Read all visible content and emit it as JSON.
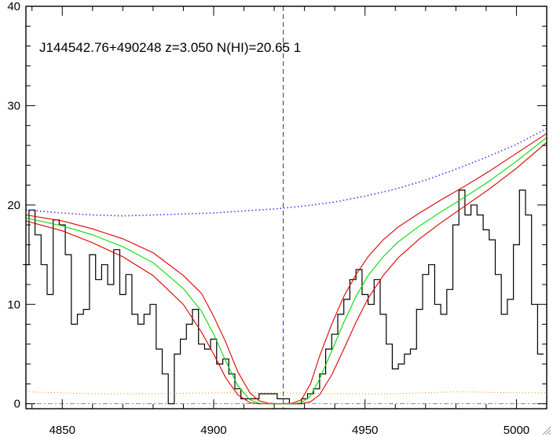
{
  "chart_data": {
    "type": "line",
    "title": "J144542.76+490248 z=3.050 N(HI)=20.65 1",
    "xlabel": "",
    "ylabel": "",
    "xlim": [
      4838,
      5010
    ],
    "ylim": [
      -0.5,
      40
    ],
    "xticks": [
      4850,
      4900,
      4950,
      5000
    ],
    "yticks": [
      0,
      10,
      20,
      30,
      40
    ],
    "absorber_center": 4923,
    "colors": {
      "flux": "#000000",
      "model": "#00dd00",
      "bounds": "#dd0000",
      "continuum": "#5a2aff",
      "marker": "#2222cc",
      "error": "#ff8800",
      "zero": "#888888"
    },
    "series": [
      {
        "style": "step",
        "x": [
          4838,
          4840,
          4842,
          4844,
          4846,
          4848,
          4850,
          4852,
          4854,
          4856,
          4858,
          4860,
          4862,
          4864,
          4866,
          4868,
          4870,
          4872,
          4874,
          4876,
          4878,
          4880,
          4882,
          4884,
          4886,
          4888,
          4890,
          4892,
          4894,
          4896,
          4898,
          4900,
          4902,
          4904,
          4906,
          4908,
          4910,
          4912,
          4914,
          4916,
          4918,
          4920,
          4922,
          4924,
          4926,
          4928,
          4930,
          4932,
          4934,
          4936,
          4938,
          4940,
          4942,
          4944,
          4946,
          4948,
          4950,
          4952,
          4954,
          4956,
          4958,
          4960,
          4962,
          4964,
          4966,
          4968,
          4970,
          4972,
          4974,
          4976,
          4978,
          4980,
          4982,
          4984,
          4986,
          4988,
          4990,
          4992,
          4994,
          4996,
          4998,
          5000,
          5002,
          5004,
          5006,
          5008
        ],
        "y": [
          14,
          19.5,
          17,
          14,
          11,
          18.5,
          18,
          15,
          8,
          9,
          9.5,
          15,
          12.5,
          14,
          12,
          15.5,
          11,
          13,
          9,
          8,
          9,
          10,
          5.5,
          3,
          0,
          5,
          6.5,
          8,
          9.5,
          6,
          5.5,
          6.5,
          4,
          4.5,
          3,
          1.5,
          0.5,
          0.5,
          0.5,
          1,
          1,
          1,
          0.5,
          0.5,
          0,
          0,
          0.5,
          1,
          1.5,
          3,
          5.5,
          7,
          9,
          10.5,
          12.5,
          13.5,
          11,
          10,
          12.5,
          9,
          6,
          3.5,
          4,
          5,
          5.5,
          9.5,
          13,
          14,
          10,
          9,
          11.5,
          18,
          21.5,
          19,
          20,
          19,
          17.5,
          16.5,
          13,
          9,
          10.5,
          16,
          21.5,
          19,
          10,
          5
        ]
      },
      {
        "name": "model",
        "x": [
          4838,
          4850,
          4860,
          4870,
          4880,
          4890,
          4896,
          4900,
          4904,
          4908,
          4912,
          4915,
          4918,
          4922,
          4926,
          4929,
          4932,
          4935,
          4939,
          4943,
          4947,
          4951,
          4956,
          4961,
          4968,
          4975,
          4983,
          4991,
          5000,
          5010
        ],
        "y": [
          18.7,
          17.9,
          17,
          15.8,
          14.2,
          11.6,
          9.3,
          7,
          4.3,
          1.8,
          0.4,
          0.05,
          0,
          0,
          0,
          0.1,
          0.8,
          2.5,
          5.3,
          8.2,
          10.8,
          12.9,
          14.8,
          16.3,
          17.9,
          19.3,
          20.8,
          22.4,
          24.4,
          26.8
        ]
      },
      {
        "name": "upper",
        "x": [
          4838,
          4850,
          4860,
          4870,
          4880,
          4890,
          4896,
          4900,
          4904,
          4908,
          4912,
          4915,
          4918,
          4922,
          4926,
          4929,
          4932,
          4935,
          4939,
          4943,
          4947,
          4951,
          4956,
          4961,
          4968,
          4975,
          4983,
          4991,
          5000,
          5010
        ],
        "y": [
          19,
          18.4,
          17.6,
          16.6,
          15.2,
          12.9,
          11.1,
          8.8,
          6.2,
          3.2,
          1.1,
          0.3,
          0.05,
          0,
          0.05,
          0.4,
          2,
          4.8,
          8,
          10.8,
          13,
          14.8,
          16.5,
          17.8,
          19.2,
          20.5,
          21.9,
          23.4,
          25.2,
          27.2
        ]
      },
      {
        "name": "lower",
        "x": [
          4838,
          4850,
          4860,
          4870,
          4880,
          4890,
          4896,
          4900,
          4904,
          4908,
          4912,
          4915,
          4918,
          4922,
          4926,
          4929,
          4932,
          4935,
          4939,
          4943,
          4947,
          4951,
          4956,
          4961,
          4968,
          4975,
          4983,
          4991,
          5000,
          5010
        ],
        "y": [
          18.4,
          17.4,
          16.2,
          14.8,
          12.9,
          10,
          7.2,
          5,
          2.6,
          0.9,
          0.1,
          0,
          0,
          0,
          0,
          0,
          0.2,
          0.9,
          2.9,
          5.5,
          8.2,
          10.6,
          12.9,
          14.7,
          16.6,
          18.2,
          19.9,
          21.6,
          23.7,
          26.3
        ]
      },
      {
        "name": "continuum",
        "style": "dotted",
        "x": [
          4838,
          4850,
          4860,
          4870,
          4880,
          4890,
          4900,
          4910,
          4920,
          4930,
          4940,
          4950,
          4960,
          4970,
          4980,
          4990,
          5000,
          5010
        ],
        "y": [
          19.5,
          19.2,
          19,
          18.9,
          19,
          19.1,
          19.2,
          19.4,
          19.6,
          19.9,
          20.3,
          20.9,
          21.6,
          22.5,
          23.6,
          24.8,
          26.1,
          27.7
        ]
      },
      {
        "name": "error",
        "style": "dotted",
        "x": [
          4838,
          4860,
          4880,
          4900,
          4920,
          4940,
          4960,
          4980,
          5000,
          5010
        ],
        "y": [
          1.2,
          1,
          1,
          1.1,
          1.1,
          1,
          1,
          1.2,
          1.1,
          1.1
        ]
      }
    ],
    "grid": false,
    "legend": "none"
  }
}
